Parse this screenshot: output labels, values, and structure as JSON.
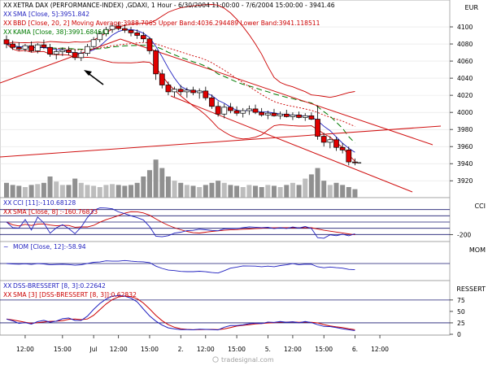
{
  "watermark": "tradesignal.com",
  "currency_label": "EUR",
  "chart_data": [
    {
      "id": "price",
      "type": "candlestick",
      "legend": [
        {
          "prefix": "XX",
          "text": "XETRA DAX (PERFORMANCE-INDEX) ,GDAXI, 1 Hour - 6/30/2004 11:00:00 - 7/6/2004 15:00:00 - 3941.46",
          "color": "#000000"
        },
        {
          "prefix": "XX",
          "text": "SMA [Close, 5]:3951.842",
          "color": "#1f1fbf"
        },
        {
          "prefix": "XX",
          "text": "BBD [Close, 20, 2] Moving Average:3988.7065 Upper Band:4036.294489 Lower Band:3941.118511",
          "color": "#cc0000"
        },
        {
          "prefix": "XX",
          "text": "KAMA [Close, 38]:3991.684641",
          "color": "#007a00"
        }
      ],
      "ylim": [
        3905,
        4120
      ],
      "y_ticks": [
        3920,
        3940,
        3960,
        3980,
        4000,
        4020,
        4040,
        4060,
        4080,
        4100
      ],
      "x_ticks": [
        "12:00",
        "15:00",
        "Jul",
        "12:00",
        "15:00",
        "2.",
        "12:00",
        "15:00",
        "5.",
        "12:00",
        "15:00",
        "6.",
        "12:00"
      ],
      "x_tick_index": [
        3,
        9,
        14,
        18,
        23,
        28,
        32,
        37,
        42,
        46,
        51,
        56,
        60
      ],
      "n_bars": 64,
      "candles": [
        [
          4085,
          4090,
          4075,
          4080
        ],
        [
          4080,
          4084,
          4073,
          4076
        ],
        [
          4076,
          4082,
          4072,
          4074
        ],
        [
          4074,
          4080,
          4071,
          4078
        ],
        [
          4078,
          4083,
          4070,
          4072
        ],
        [
          4072,
          4081,
          4069,
          4079
        ],
        [
          4079,
          4085,
          4074,
          4076
        ],
        [
          4076,
          4080,
          4065,
          4068
        ],
        [
          4068,
          4075,
          4062,
          4071
        ],
        [
          4071,
          4076,
          4066,
          4073
        ],
        [
          4073,
          4077,
          4067,
          4070
        ],
        [
          4070,
          4074,
          4061,
          4064
        ],
        [
          4064,
          4072,
          4060,
          4069
        ],
        [
          4069,
          4080,
          4066,
          4077
        ],
        [
          4077,
          4088,
          4074,
          4085
        ],
        [
          4085,
          4095,
          4082,
          4092
        ],
        [
          4092,
          4100,
          4089,
          4097
        ],
        [
          4097,
          4104,
          4093,
          4101
        ],
        [
          4101,
          4106,
          4096,
          4098
        ],
        [
          4098,
          4103,
          4093,
          4096
        ],
        [
          4096,
          4100,
          4089,
          4093
        ],
        [
          4093,
          4097,
          4086,
          4090
        ],
        [
          4090,
          4094,
          4082,
          4086
        ],
        [
          4086,
          4088,
          4068,
          4072
        ],
        [
          4072,
          4074,
          4038,
          4045
        ],
        [
          4045,
          4050,
          4028,
          4032
        ],
        [
          4032,
          4036,
          4020,
          4024
        ],
        [
          4024,
          4030,
          4018,
          4027
        ],
        [
          4027,
          4032,
          4020,
          4024
        ],
        [
          4024,
          4029,
          4017,
          4026
        ],
        [
          4026,
          4030,
          4020,
          4023
        ],
        [
          4023,
          4028,
          4016,
          4025
        ],
        [
          4025,
          4030,
          4014,
          4017
        ],
        [
          4017,
          4021,
          4004,
          4007
        ],
        [
          4007,
          4013,
          3995,
          3998
        ],
        [
          3998,
          4010,
          3993,
          4006
        ],
        [
          4006,
          4011,
          3999,
          4002
        ],
        [
          4002,
          4007,
          3996,
          3999
        ],
        [
          3999,
          4005,
          3994,
          4002
        ],
        [
          4002,
          4008,
          3997,
          4004
        ],
        [
          4004,
          4009,
          3998,
          4000
        ],
        [
          4000,
          4005,
          3995,
          3997
        ],
        [
          3997,
          4002,
          3992,
          3999
        ],
        [
          3999,
          4004,
          3995,
          3996
        ],
        [
          3996,
          4001,
          3992,
          3998
        ],
        [
          3998,
          4003,
          3994,
          3995
        ],
        [
          3995,
          4000,
          3991,
          3997
        ],
        [
          3997,
          4001,
          3993,
          3994
        ],
        [
          3994,
          3999,
          3990,
          3996
        ],
        [
          3996,
          4000,
          3991,
          3992
        ],
        [
          3992,
          4008,
          3968,
          3972
        ],
        [
          3972,
          3976,
          3960,
          3965
        ],
        [
          3965,
          3972,
          3958,
          3968
        ],
        [
          3968,
          3971,
          3955,
          3959
        ],
        [
          3959,
          3964,
          3952,
          3956
        ],
        [
          3956,
          3960,
          3938,
          3942
        ],
        [
          3942,
          3946,
          3938,
          3941
        ],
        [
          3941,
          3944,
          3938,
          3941
        ],
        [
          3941,
          3944,
          3938,
          3941
        ],
        [
          3941,
          3944,
          3938,
          3941
        ],
        [
          3941,
          3944,
          3938,
          3941
        ],
        [
          3941,
          3944,
          3938,
          3941
        ],
        [
          3941,
          3944,
          3938,
          3941
        ],
        [
          3941,
          3944,
          3938,
          3941
        ]
      ],
      "volume_rel": [
        0.35,
        0.3,
        0.28,
        0.25,
        0.3,
        0.32,
        0.35,
        0.5,
        0.38,
        0.3,
        0.3,
        0.45,
        0.35,
        0.3,
        0.28,
        0.25,
        0.3,
        0.32,
        0.3,
        0.28,
        0.3,
        0.35,
        0.5,
        0.65,
        0.9,
        0.7,
        0.5,
        0.4,
        0.35,
        0.3,
        0.28,
        0.25,
        0.3,
        0.35,
        0.4,
        0.35,
        0.3,
        0.28,
        0.25,
        0.3,
        0.28,
        0.25,
        0.3,
        0.28,
        0.25,
        0.3,
        0.35,
        0.3,
        0.45,
        0.55,
        0.7,
        0.4,
        0.3,
        0.35,
        0.3,
        0.25,
        0.2,
        0,
        0,
        0,
        0,
        0,
        0,
        0
      ]
    },
    {
      "id": "cci",
      "type": "line",
      "legend": [
        {
          "prefix": "XX",
          "text": "CCI [11]:-110.68128",
          "color": "#1f1fbf"
        },
        {
          "prefix": "XX",
          "text": "SMA [Close, 8] :-160.76833",
          "color": "#cc0000"
        }
      ],
      "label": "CCI",
      "ylim": [
        -300,
        300
      ],
      "y_ticks": [
        -200
      ],
      "hlines": [
        200,
        100,
        0,
        -100,
        -200
      ]
    },
    {
      "id": "mom",
      "type": "line",
      "legend": [
        {
          "prefix": "~",
          "text": "MOM [Close, 12]:-58.94",
          "color": "#1f1fbf"
        }
      ],
      "label": "MOM",
      "ylim": [
        -150,
        150
      ],
      "hlines": [
        0
      ]
    },
    {
      "id": "dss",
      "type": "line",
      "legend": [
        {
          "prefix": "XX",
          "text": "DSS-BRESSERT [8, 3]:0.22642",
          "color": "#1f1fbf"
        },
        {
          "prefix": "XX",
          "text": "SMA [3] [DSS-BRESSERT [8, 3]]:0.62832",
          "color": "#cc0000"
        }
      ],
      "label": "RESSERT",
      "ylim": [
        0,
        105
      ],
      "y_ticks": [
        75,
        50,
        25,
        0
      ],
      "hlines": [
        75,
        25
      ]
    }
  ]
}
